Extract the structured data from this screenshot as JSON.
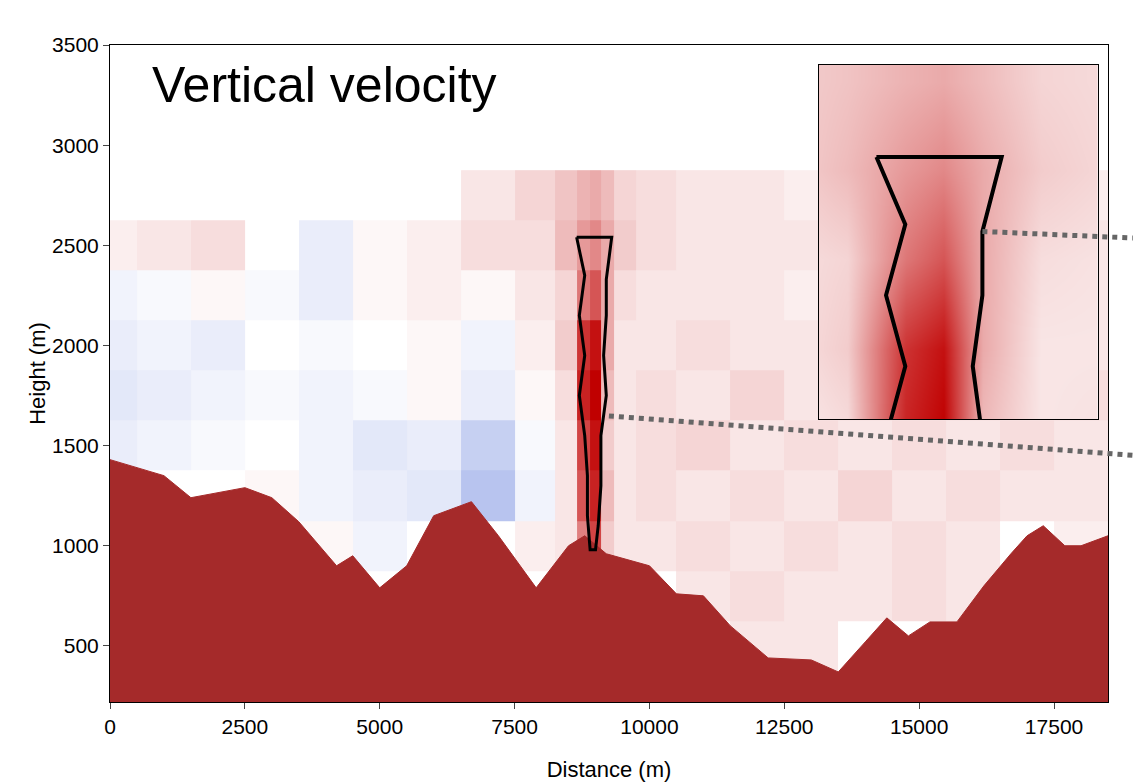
{
  "chart_data": {
    "type": "heatmap",
    "title": "Vertical velocity",
    "x_label": "Distance (m)",
    "y_label": "Height (m)",
    "xlim": [
      0,
      18500
    ],
    "ylim": [
      220,
      3500
    ],
    "xticks": [
      0,
      2500,
      5000,
      7500,
      10000,
      12500,
      15000,
      17500
    ],
    "yticks": [
      500,
      1000,
      1500,
      2000,
      2500,
      3000,
      3500
    ],
    "grid": false,
    "x": [
      0,
      1000,
      2000,
      3000,
      4000,
      5000,
      6000,
      7000,
      8000,
      8500,
      8800,
      9000,
      9200,
      9500,
      10000,
      11000,
      12000,
      13000,
      14000,
      15000,
      16000,
      17000,
      18000
    ],
    "y": [
      250,
      500,
      750,
      1000,
      1250,
      1500,
      1750,
      2000,
      2250,
      2500,
      2750
    ],
    "z": [
      [
        null,
        null,
        null,
        null,
        null,
        null,
        null,
        null,
        null,
        null,
        null,
        null,
        null,
        null,
        null,
        null,
        null,
        null,
        null,
        null,
        null,
        null,
        null
      ],
      [
        null,
        null,
        null,
        null,
        null,
        null,
        null,
        null,
        null,
        null,
        null,
        null,
        null,
        null,
        null,
        null,
        0.3,
        0.3,
        null,
        null,
        null,
        null,
        null
      ],
      [
        null,
        null,
        null,
        null,
        null,
        null,
        null,
        null,
        null,
        null,
        null,
        null,
        null,
        null,
        null,
        0.3,
        0.4,
        0.3,
        0.3,
        0.4,
        0.3,
        null,
        null
      ],
      [
        null,
        null,
        null,
        null,
        0.1,
        -0.2,
        null,
        null,
        0.2,
        0.3,
        1.5,
        2.2,
        0.6,
        0.3,
        0.3,
        0.4,
        0.3,
        0.4,
        0.3,
        0.4,
        0.3,
        null,
        0.2
      ],
      [
        null,
        null,
        null,
        0.1,
        -0.2,
        -0.3,
        -0.4,
        -1.0,
        -0.2,
        0.3,
        2.0,
        2.6,
        0.8,
        0.3,
        0.4,
        0.3,
        0.4,
        0.3,
        0.5,
        0.3,
        0.4,
        0.3,
        0.3
      ],
      [
        -0.3,
        -0.2,
        -0.1,
        0.0,
        -0.2,
        -0.4,
        -0.3,
        -0.8,
        -0.1,
        0.3,
        2.2,
        2.8,
        0.6,
        0.3,
        0.4,
        0.5,
        0.3,
        0.4,
        0.3,
        0.4,
        0.3,
        0.4,
        0.3
      ],
      [
        -0.4,
        -0.3,
        -0.2,
        -0.1,
        -0.2,
        -0.1,
        0.1,
        -0.3,
        0.1,
        0.4,
        2.6,
        3.0,
        0.8,
        0.3,
        0.4,
        0.3,
        0.5,
        0.3,
        0.4,
        0.3,
        0.4,
        0.3,
        0.4
      ],
      [
        -0.3,
        -0.2,
        -0.3,
        0.0,
        -0.1,
        0.0,
        0.1,
        -0.2,
        0.2,
        0.6,
        2.4,
        2.8,
        1.0,
        0.3,
        0.3,
        0.4,
        0.3,
        0.3,
        0.4,
        0.3,
        0.3,
        0.4,
        0.3
      ],
      [
        -0.2,
        -0.1,
        0.1,
        -0.1,
        -0.3,
        0.1,
        0.2,
        0.1,
        0.3,
        0.5,
        1.6,
        2.0,
        1.0,
        0.4,
        0.3,
        0.3,
        0.3,
        0.2,
        0.3,
        0.2,
        0.3,
        0.2,
        0.3
      ],
      [
        0.2,
        0.3,
        0.4,
        0.0,
        -0.3,
        0.1,
        0.2,
        0.4,
        0.4,
        0.8,
        1.2,
        1.4,
        1.0,
        0.6,
        0.4,
        0.3,
        0.3,
        0.3,
        0.3,
        0.2,
        0.3,
        0.2,
        0.3
      ],
      [
        null,
        null,
        null,
        null,
        null,
        null,
        null,
        0.3,
        0.5,
        0.7,
        0.9,
        1.0,
        0.8,
        0.5,
        0.4,
        0.3,
        0.3,
        0.2,
        0.2,
        0.2,
        0.2,
        0.2,
        0.2
      ]
    ],
    "zlim": [
      -3,
      3
    ],
    "terrain": {
      "color": "#a52a2a",
      "x": [
        0,
        1000,
        1500,
        2500,
        3000,
        3500,
        4200,
        4500,
        5000,
        5500,
        6000,
        6700,
        7200,
        7900,
        8500,
        8800,
        9200,
        10000,
        10500,
        11000,
        11500,
        12200,
        13000,
        13500,
        14000,
        14400,
        14800,
        15200,
        15700,
        16200,
        16700,
        17000,
        17300,
        17700,
        18000,
        18500
      ],
      "height": [
        1430,
        1350,
        1240,
        1290,
        1240,
        1120,
        900,
        950,
        790,
        900,
        1150,
        1220,
        1050,
        790,
        1000,
        1050,
        960,
        900,
        760,
        750,
        600,
        440,
        430,
        370,
        520,
        640,
        550,
        620,
        620,
        800,
        960,
        1050,
        1100,
        1000,
        1000,
        1050
      ]
    },
    "updraft_outline": {
      "x": [
        8650,
        9300,
        9200,
        9200,
        9150,
        9200,
        9100,
        9100,
        9050,
        9000,
        8900,
        8850,
        8850,
        8800,
        8700,
        8800,
        8700,
        8800,
        8650
      ],
      "y": [
        2540,
        2540,
        2330,
        2150,
        1950,
        1750,
        1550,
        1300,
        1100,
        980,
        980,
        1150,
        1350,
        1550,
        1750,
        1950,
        2150,
        2350,
        2540
      ]
    },
    "inset": {
      "xlim": [
        8350,
        9800
      ],
      "ylim": [
        1800,
        2800
      ]
    }
  }
}
